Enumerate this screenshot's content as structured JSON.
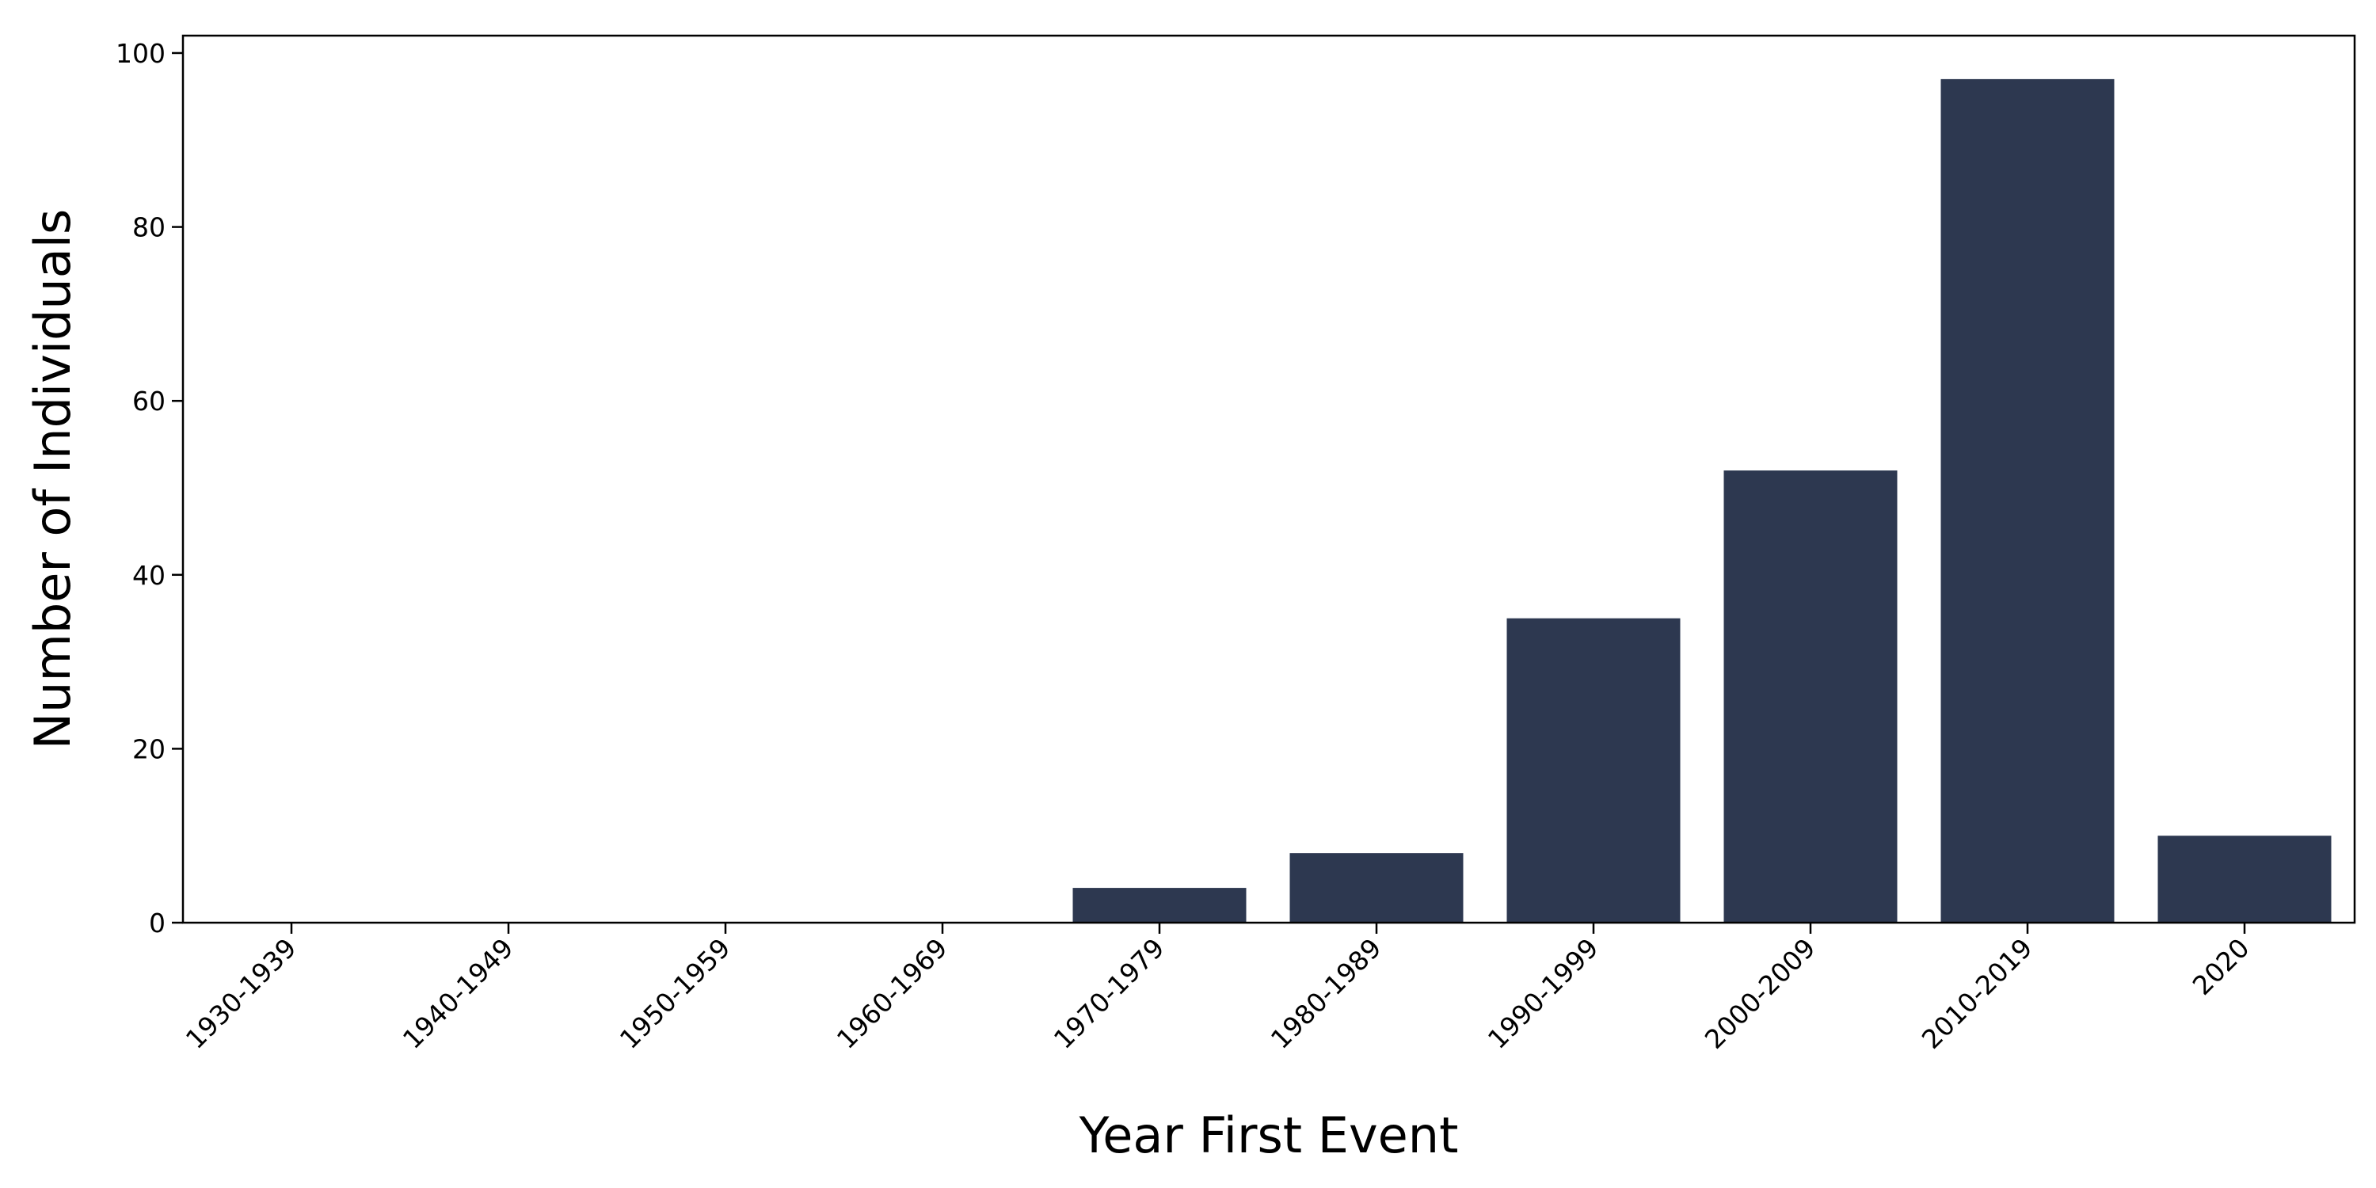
{
  "chart_data": {
    "type": "bar",
    "categories": [
      "1930-1939",
      "1940-1949",
      "1950-1959",
      "1960-1969",
      "1970-1979",
      "1980-1989",
      "1990-1999",
      "2000-2009",
      "2010-2019",
      "2020"
    ],
    "values": [
      0,
      0,
      0,
      0,
      4,
      8,
      35,
      52,
      97,
      10
    ],
    "title": "",
    "xlabel": "Year First Event",
    "ylabel": "Number of Individuals",
    "ylim": [
      0,
      102
    ],
    "yticks": [
      "0",
      "20",
      "40",
      "60",
      "80",
      "100"
    ],
    "grid": false,
    "legend": "none",
    "bar_color": "#2d3850"
  }
}
